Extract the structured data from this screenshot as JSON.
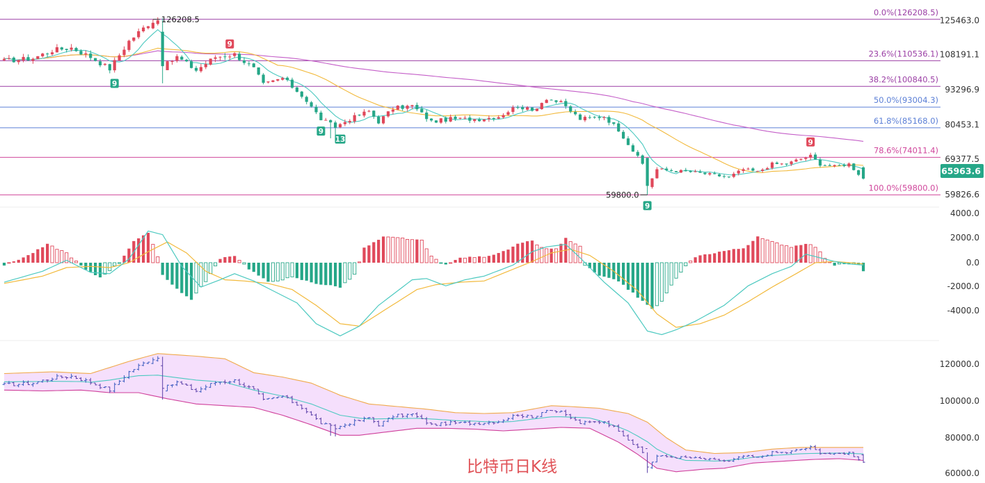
{
  "colors": {
    "up": "#e0485a",
    "down": "#26a788",
    "ma_fast": "#4cc9c0",
    "ma_mid": "#f2b93b",
    "ma_slow": "#c45ec8",
    "fib_purple": "#9b3fa5",
    "fib_blue": "#5b7fd6",
    "fib_pink": "#d0479c",
    "axis_text": "#333333",
    "price_badge": "#26a788",
    "title": "#e05257",
    "band_fill": "#f3d9fb",
    "band_upper": "#f0a94a",
    "band_lower": "#cf3f9a",
    "band_mid": "#4cc9c0"
  },
  "title": "比特币日K线",
  "price_panel": {
    "y_ticks": [
      "125463.0",
      "108191.1",
      "93296.9",
      "80453.1",
      "69377.5",
      "59826.6"
    ],
    "current_price": "65963.6",
    "high_label": "126208.5",
    "low_label": "59800.0",
    "fib_levels": [
      {
        "label": "0.0%(126208.5)",
        "price": 126208.5
      },
      {
        "label": "23.6%(110536.1)",
        "price": 110536.1
      },
      {
        "label": "38.2%(100840.5)",
        "price": 100840.5
      },
      {
        "label": "50.0%(93004.3)",
        "price": 93004.3
      },
      {
        "label": "61.8%(85168.0)",
        "price": 85168.0
      },
      {
        "label": "78.6%(74011.4)",
        "price": 74011.4
      },
      {
        "label": "100.0%(59800.0)",
        "price": 59800.0
      }
    ],
    "td_markers": [
      {
        "label": "9",
        "type": "buy",
        "day": 23
      },
      {
        "label": "9",
        "type": "sell",
        "day": 47
      },
      {
        "label": "9",
        "type": "buy",
        "day": 66
      },
      {
        "label": "13",
        "type": "buy",
        "day": 70
      },
      {
        "label": "9",
        "type": "buy",
        "day": 134
      },
      {
        "label": "9",
        "type": "sell",
        "day": 168
      }
    ]
  },
  "macd_panel": {
    "y_ticks": [
      "4000.0",
      "2000.0",
      "0.0",
      "-2000.0",
      "-4000.0"
    ]
  },
  "boll_panel": {
    "y_ticks": [
      "120000.0",
      "100000.0",
      "80000.0",
      "60000.0"
    ]
  },
  "chart_data": {
    "type": "candlestick",
    "title": "比特币日K线",
    "x_unit": "day index (daily candles)",
    "price_range": [
      56000,
      131000
    ],
    "macd_range": [
      -6000,
      5000
    ],
    "boll_range": [
      58000,
      132000
    ],
    "close_anchors": [
      [
        0,
        110500
      ],
      [
        6,
        111500
      ],
      [
        10,
        114500
      ],
      [
        14,
        115500
      ],
      [
        18,
        112000
      ],
      [
        22,
        107500
      ],
      [
        26,
        118000
      ],
      [
        30,
        124500
      ],
      [
        32,
        126000
      ],
      [
        33,
        108000
      ],
      [
        36,
        112000
      ],
      [
        40,
        107000
      ],
      [
        44,
        112000
      ],
      [
        48,
        113000
      ],
      [
        52,
        107500
      ],
      [
        54,
        101500
      ],
      [
        58,
        104000
      ],
      [
        62,
        97500
      ],
      [
        66,
        88500
      ],
      [
        69,
        85500
      ],
      [
        72,
        88500
      ],
      [
        76,
        91500
      ],
      [
        78,
        87500
      ],
      [
        81,
        92500
      ],
      [
        85,
        93500
      ],
      [
        89,
        87500
      ],
      [
        93,
        88500
      ],
      [
        99,
        88500
      ],
      [
        103,
        89500
      ],
      [
        107,
        93500
      ],
      [
        110,
        91500
      ],
      [
        113,
        96500
      ],
      [
        116,
        94500
      ],
      [
        120,
        88500
      ],
      [
        125,
        89500
      ],
      [
        128,
        84500
      ],
      [
        131,
        76500
      ],
      [
        133,
        71500
      ],
      [
        134,
        63000
      ],
      [
        136,
        69500
      ],
      [
        139,
        69000
      ],
      [
        143,
        68500
      ],
      [
        147,
        67500
      ],
      [
        151,
        66500
      ],
      [
        154,
        69500
      ],
      [
        157,
        68500
      ],
      [
        160,
        71500
      ],
      [
        163,
        71500
      ],
      [
        166,
        73500
      ],
      [
        168,
        74500
      ],
      [
        170,
        71500
      ],
      [
        173,
        70500
      ],
      [
        176,
        71500
      ],
      [
        179,
        65963.6
      ]
    ],
    "macd_hist_anchors": [
      [
        0,
        -200
      ],
      [
        5,
        600
      ],
      [
        9,
        1500
      ],
      [
        13,
        800
      ],
      [
        17,
        -600
      ],
      [
        20,
        -1200
      ],
      [
        24,
        0
      ],
      [
        27,
        1800
      ],
      [
        30,
        2400
      ],
      [
        32,
        500
      ],
      [
        33,
        -1000
      ],
      [
        37,
        -2500
      ],
      [
        39,
        -3000
      ],
      [
        42,
        -1500
      ],
      [
        45,
        300
      ],
      [
        48,
        600
      ],
      [
        51,
        -500
      ],
      [
        55,
        -1600
      ],
      [
        60,
        -1200
      ],
      [
        65,
        -1700
      ],
      [
        70,
        -2000
      ],
      [
        73,
        -1000
      ],
      [
        75,
        1200
      ],
      [
        79,
        2100
      ],
      [
        83,
        2000
      ],
      [
        87,
        1800
      ],
      [
        89,
        500
      ],
      [
        92,
        -200
      ],
      [
        95,
        400
      ],
      [
        100,
        500
      ],
      [
        104,
        900
      ],
      [
        107,
        1500
      ],
      [
        110,
        1800
      ],
      [
        112,
        1200
      ],
      [
        115,
        1100
      ],
      [
        117,
        2000
      ],
      [
        120,
        1300
      ],
      [
        121,
        -200
      ],
      [
        124,
        -1100
      ],
      [
        128,
        -1500
      ],
      [
        131,
        -2500
      ],
      [
        135,
        -3800
      ],
      [
        137,
        -3200
      ],
      [
        139,
        -1800
      ],
      [
        142,
        -300
      ],
      [
        144,
        500
      ],
      [
        149,
        900
      ],
      [
        154,
        1200
      ],
      [
        157,
        2100
      ],
      [
        160,
        1700
      ],
      [
        164,
        1300
      ],
      [
        167,
        1600
      ],
      [
        169,
        1300
      ],
      [
        171,
        400
      ],
      [
        173,
        -200
      ],
      [
        176,
        -100
      ],
      [
        178,
        -200
      ],
      [
        179,
        -700
      ]
    ],
    "macd_dif_anchors": [
      [
        0,
        -1600
      ],
      [
        8,
        -700
      ],
      [
        13,
        200
      ],
      [
        18,
        -800
      ],
      [
        22,
        -900
      ],
      [
        26,
        300
      ],
      [
        30,
        2600
      ],
      [
        33,
        2300
      ],
      [
        37,
        -300
      ],
      [
        41,
        -2000
      ],
      [
        45,
        -1400
      ],
      [
        48,
        -900
      ],
      [
        52,
        -1500
      ],
      [
        57,
        -2500
      ],
      [
        61,
        -3300
      ],
      [
        65,
        -5000
      ],
      [
        70,
        -6000
      ],
      [
        74,
        -5200
      ],
      [
        78,
        -3500
      ],
      [
        81,
        -2600
      ],
      [
        85,
        -1400
      ],
      [
        88,
        -1300
      ],
      [
        92,
        -1900
      ],
      [
        96,
        -1400
      ],
      [
        100,
        -1100
      ],
      [
        106,
        -200
      ],
      [
        110,
        900
      ],
      [
        113,
        1300
      ],
      [
        117,
        1500
      ],
      [
        120,
        400
      ],
      [
        125,
        -1600
      ],
      [
        130,
        -3300
      ],
      [
        134,
        -5600
      ],
      [
        137,
        -5900
      ],
      [
        140,
        -5500
      ],
      [
        144,
        -4800
      ],
      [
        150,
        -3500
      ],
      [
        155,
        -1900
      ],
      [
        160,
        -900
      ],
      [
        164,
        -300
      ],
      [
        167,
        700
      ],
      [
        170,
        400
      ],
      [
        173,
        100
      ],
      [
        176,
        -100
      ],
      [
        179,
        -200
      ]
    ],
    "macd_dea_anchors": [
      [
        0,
        -1700
      ],
      [
        8,
        -1100
      ],
      [
        13,
        -400
      ],
      [
        18,
        -300
      ],
      [
        22,
        -400
      ],
      [
        26,
        0
      ],
      [
        30,
        900
      ],
      [
        34,
        1700
      ],
      [
        38,
        800
      ],
      [
        42,
        -700
      ],
      [
        46,
        -1400
      ],
      [
        50,
        -1500
      ],
      [
        55,
        -1700
      ],
      [
        60,
        -2200
      ],
      [
        65,
        -3500
      ],
      [
        70,
        -5000
      ],
      [
        74,
        -5200
      ],
      [
        78,
        -4200
      ],
      [
        82,
        -3200
      ],
      [
        86,
        -2200
      ],
      [
        90,
        -1800
      ],
      [
        95,
        -1600
      ],
      [
        100,
        -1500
      ],
      [
        105,
        -700
      ],
      [
        110,
        100
      ],
      [
        114,
        800
      ],
      [
        118,
        1100
      ],
      [
        122,
        600
      ],
      [
        127,
        -700
      ],
      [
        132,
        -2300
      ],
      [
        136,
        -4200
      ],
      [
        140,
        -5300
      ],
      [
        145,
        -5000
      ],
      [
        150,
        -4300
      ],
      [
        155,
        -3200
      ],
      [
        160,
        -2000
      ],
      [
        165,
        -900
      ],
      [
        169,
        0
      ],
      [
        173,
        100
      ],
      [
        176,
        0
      ],
      [
        179,
        -100
      ]
    ],
    "boll_upper_anchors": [
      [
        0,
        117000
      ],
      [
        10,
        118000
      ],
      [
        18,
        117000
      ],
      [
        26,
        124000
      ],
      [
        32,
        128500
      ],
      [
        40,
        127000
      ],
      [
        46,
        125500
      ],
      [
        52,
        117500
      ],
      [
        58,
        115000
      ],
      [
        64,
        111500
      ],
      [
        70,
        104500
      ],
      [
        76,
        99500
      ],
      [
        82,
        98000
      ],
      [
        88,
        96500
      ],
      [
        94,
        94500
      ],
      [
        100,
        94000
      ],
      [
        106,
        94500
      ],
      [
        110,
        96500
      ],
      [
        114,
        98500
      ],
      [
        118,
        98000
      ],
      [
        124,
        97000
      ],
      [
        130,
        94000
      ],
      [
        134,
        89000
      ],
      [
        138,
        80000
      ],
      [
        142,
        73000
      ],
      [
        148,
        71000
      ],
      [
        154,
        71500
      ],
      [
        160,
        73500
      ],
      [
        166,
        74500
      ],
      [
        172,
        74500
      ],
      [
        179,
        74500
      ]
    ],
    "boll_lower_anchors": [
      [
        0,
        107500
      ],
      [
        8,
        107000
      ],
      [
        16,
        107500
      ],
      [
        22,
        106000
      ],
      [
        28,
        106000
      ],
      [
        34,
        102500
      ],
      [
        40,
        99500
      ],
      [
        46,
        98500
      ],
      [
        52,
        97500
      ],
      [
        58,
        93000
      ],
      [
        64,
        87500
      ],
      [
        70,
        81500
      ],
      [
        74,
        81500
      ],
      [
        80,
        83500
      ],
      [
        86,
        85500
      ],
      [
        92,
        85500
      ],
      [
        98,
        85000
      ],
      [
        104,
        84000
      ],
      [
        110,
        85000
      ],
      [
        116,
        86000
      ],
      [
        122,
        85500
      ],
      [
        128,
        77500
      ],
      [
        132,
        70500
      ],
      [
        136,
        62500
      ],
      [
        140,
        60500
      ],
      [
        146,
        62000
      ],
      [
        150,
        62500
      ],
      [
        156,
        65500
      ],
      [
        162,
        66500
      ],
      [
        168,
        67500
      ],
      [
        174,
        68000
      ],
      [
        179,
        67000
      ]
    ]
  }
}
